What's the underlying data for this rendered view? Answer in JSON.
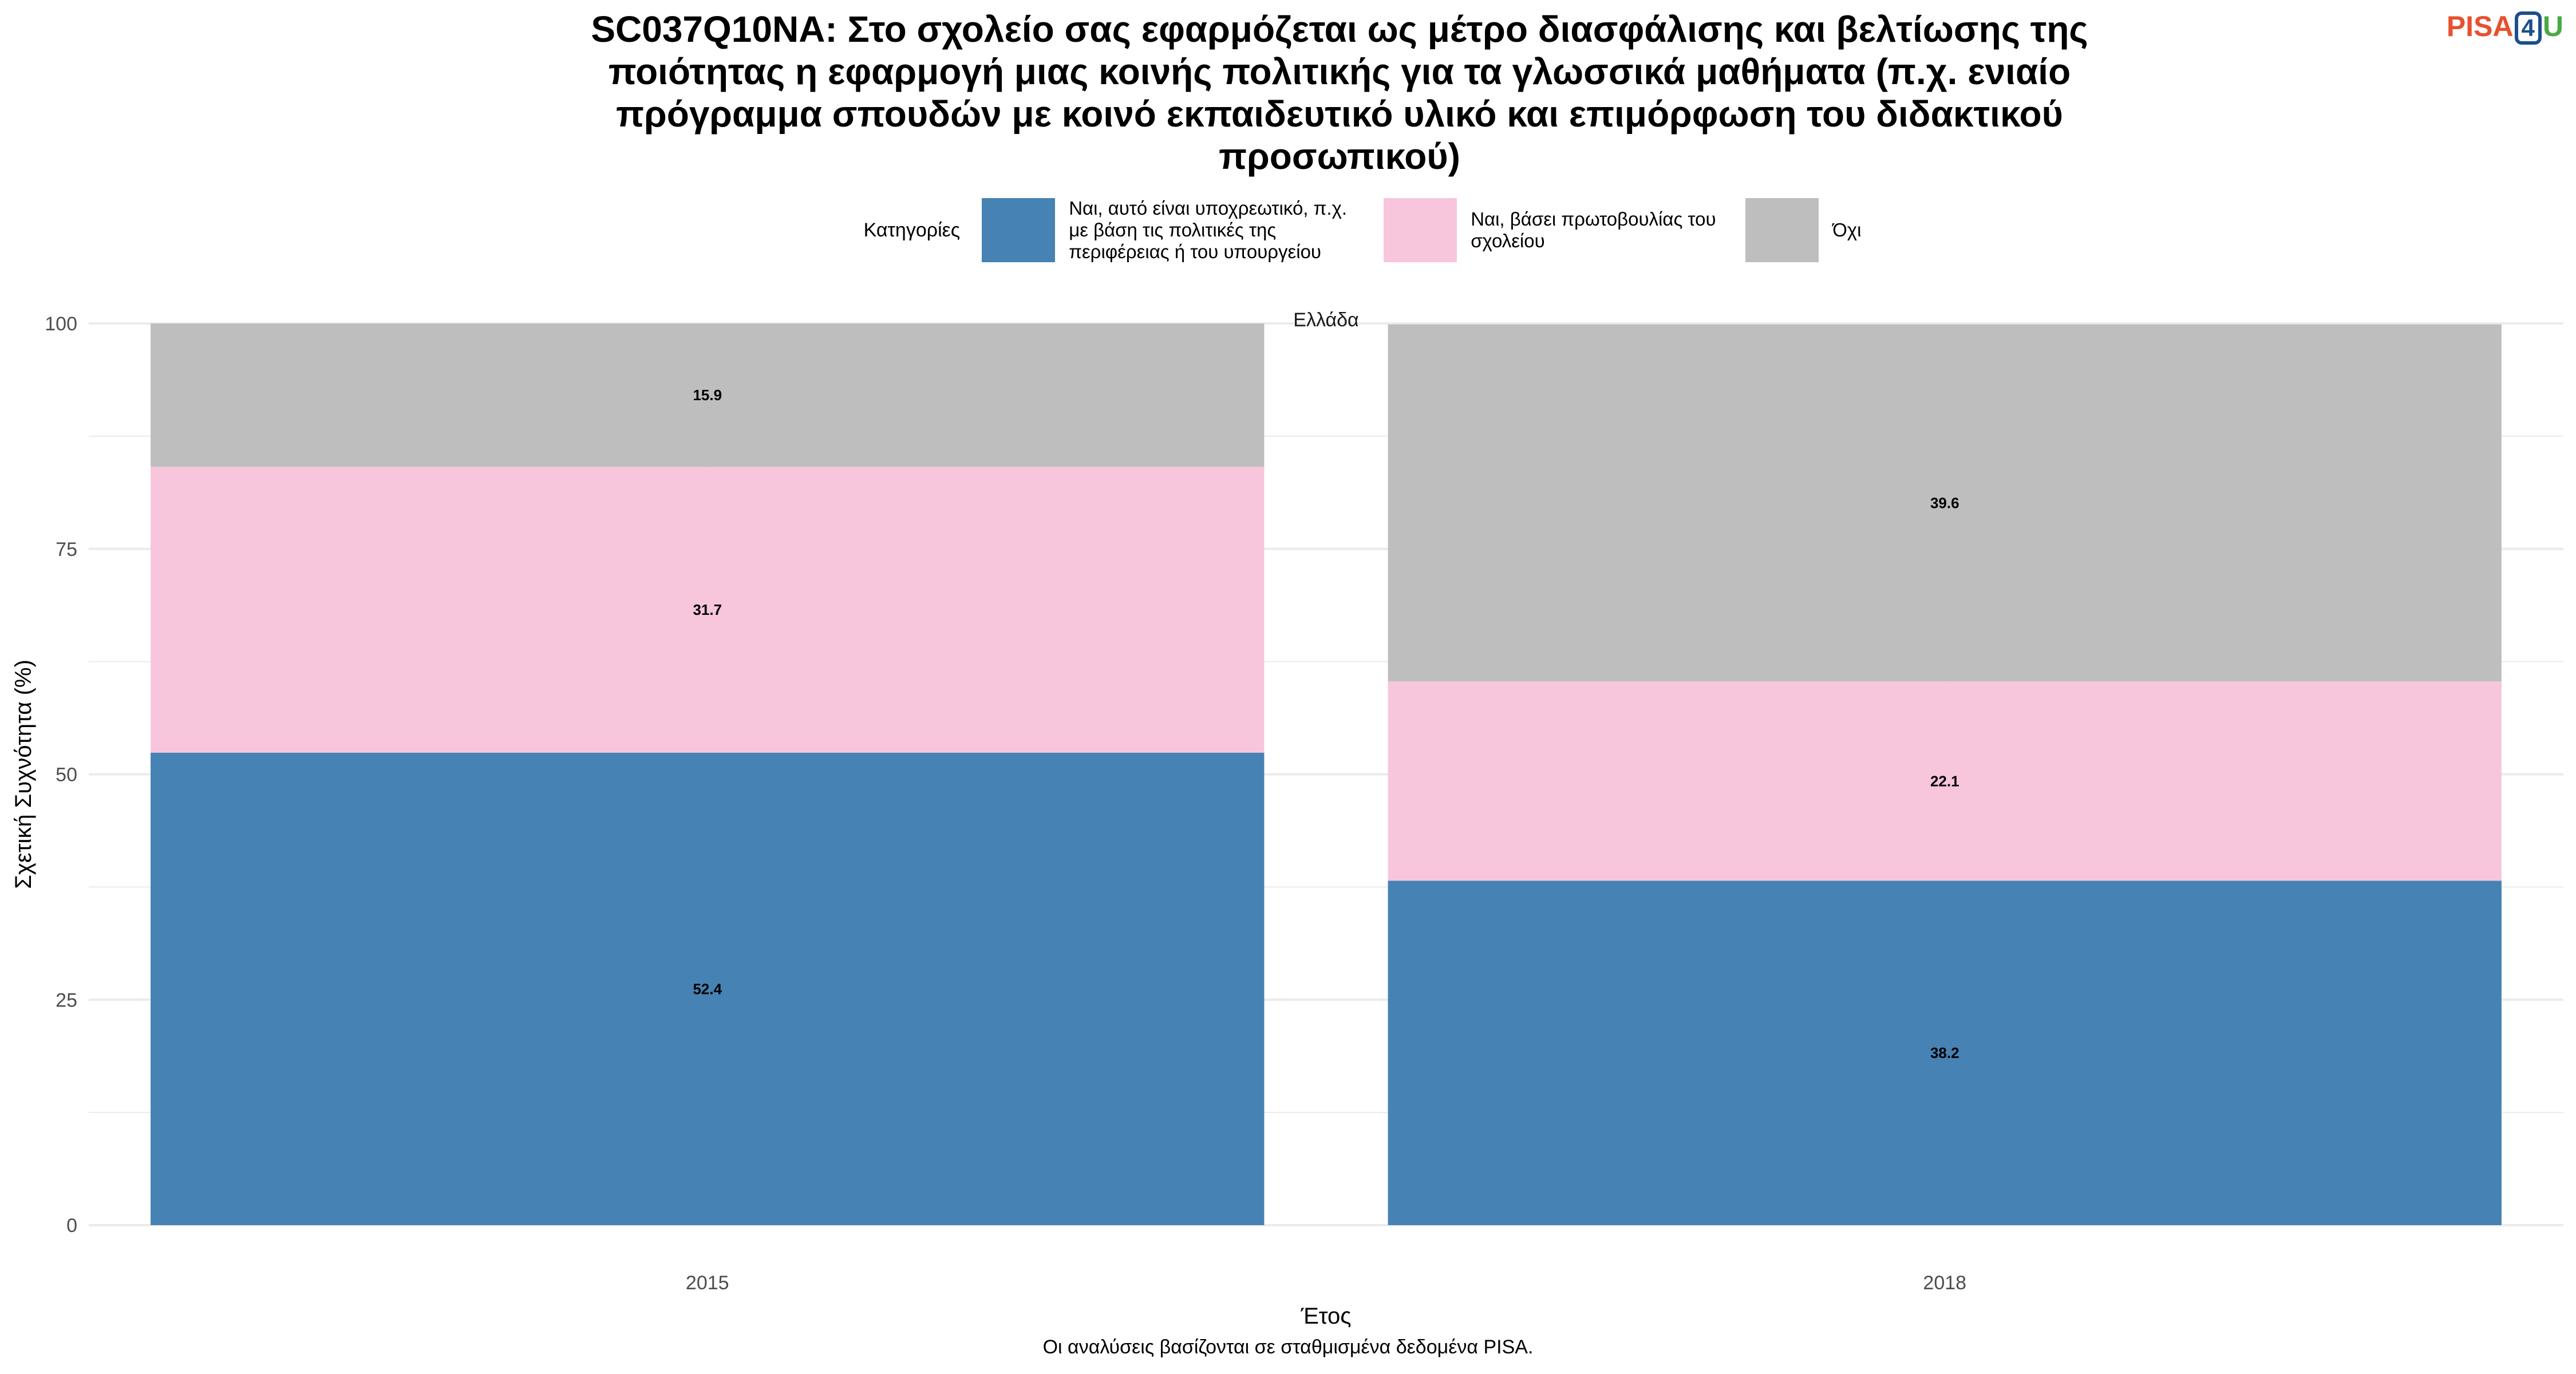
{
  "header": {
    "title": "SC037Q10NA: Στο σχολείο σας εφαρμόζεται ως μέτρο διασφάλισης και βελτίωσης της ποιότητας η εφαρμογή μιας κοινής πολιτικής για τα γλωσσικά μαθήματα (π.χ. ενιαίο πρόγραμμα σπουδών με κοινό εκπαιδευτικό υλικό και επιμόρφωση του διδακτικού προσωπικού)",
    "logo": {
      "pisa": "PISA",
      "num": "4",
      "u": "U"
    }
  },
  "legend": {
    "title": "Κατηγορίες",
    "items": [
      {
        "label": "Ναι, αυτό είναι υποχρεωτικό, π.χ. με βάση τις πολιτικές της περιφέρειας ή του υπουργείου",
        "color": "#4682b4"
      },
      {
        "label": "Ναι, βάσει πρωτοβουλίας του σχολείου",
        "color": "#f7c6dc"
      },
      {
        "label": "Όχι",
        "color": "#bebebe"
      }
    ]
  },
  "footer": {
    "note": "Οι αναλύσεις βασίζονται σε σταθμισμένα δεδομένα PISA."
  },
  "chart_data": {
    "type": "bar",
    "stacked": true,
    "facet_label": "Ελλάδα",
    "categories": [
      "2015",
      "2018"
    ],
    "series": [
      {
        "name": "Ναι, αυτό είναι υποχρεωτικό, π.χ. με βάση τις πολιτικές της περιφέρειας ή του υπουργείου",
        "values": [
          52.4,
          38.2
        ],
        "color": "#4682b4"
      },
      {
        "name": "Ναι, βάσει πρωτοβουλίας του σχολείου",
        "values": [
          31.7,
          22.1
        ],
        "color": "#f7c6dc"
      },
      {
        "name": "Όχι",
        "values": [
          15.9,
          39.6
        ],
        "color": "#bebebe"
      }
    ],
    "data_labels": [
      [
        "52.4",
        "38.2"
      ],
      [
        "31.7",
        "22.1"
      ],
      [
        "15.9",
        "39.6"
      ]
    ],
    "xlabel": "Έτος",
    "ylabel": "Σχετική Συχνότητα (%)",
    "ylim": [
      0,
      100
    ],
    "yticks": [
      "0",
      "25",
      "50",
      "75",
      "100"
    ],
    "grid": true,
    "legend_position": "top",
    "label_color": "#000000",
    "grid_color": "#ebebeb"
  }
}
